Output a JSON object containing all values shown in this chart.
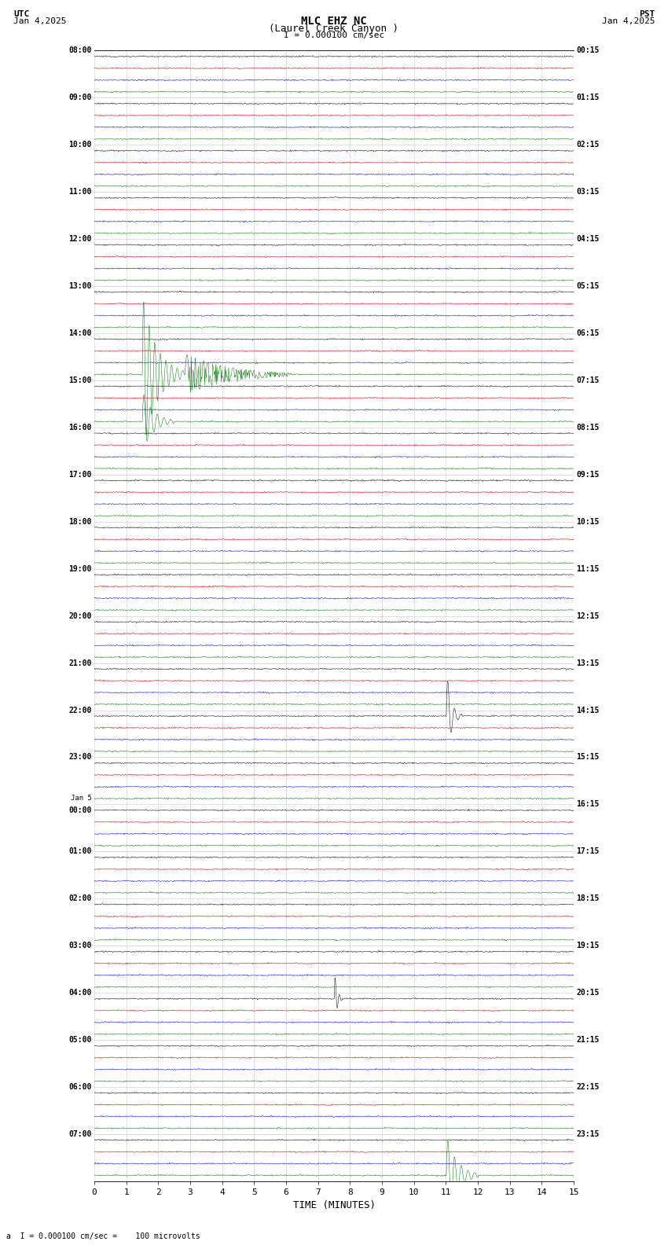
{
  "title_line1": "MLC EHZ NC",
  "title_line2": "(Laurel Creek Canyon )",
  "scale_label": "I = 0.000100 cm/sec",
  "bottom_label": "a  I = 0.000100 cm/sec =    100 microvolts",
  "utc_label": "UTC",
  "pst_label": "PST",
  "utc_date": "Jan 4,2025",
  "pst_date": "Jan 4,2025",
  "xlabel": "TIME (MINUTES)",
  "xmin": 0,
  "xmax": 15,
  "xticks": [
    0,
    1,
    2,
    3,
    4,
    5,
    6,
    7,
    8,
    9,
    10,
    11,
    12,
    13,
    14,
    15
  ],
  "bg_color": "#ffffff",
  "grid_color": "#aaaaaa",
  "trace_colors": [
    "#000000",
    "#cc0000",
    "#0000cc",
    "#007700"
  ],
  "left_times_utc": [
    "08:00",
    "09:00",
    "10:00",
    "11:00",
    "12:00",
    "13:00",
    "14:00",
    "15:00",
    "16:00",
    "17:00",
    "18:00",
    "19:00",
    "20:00",
    "21:00",
    "22:00",
    "23:00",
    "Jan 5\n00:00",
    "01:00",
    "02:00",
    "03:00",
    "04:00",
    "05:00",
    "06:00",
    "07:00"
  ],
  "right_times_pst": [
    "00:15",
    "01:15",
    "02:15",
    "03:15",
    "04:15",
    "05:15",
    "06:15",
    "07:15",
    "08:15",
    "09:15",
    "10:15",
    "11:15",
    "12:15",
    "13:15",
    "14:15",
    "15:15",
    "16:15",
    "17:15",
    "18:15",
    "19:15",
    "20:15",
    "21:15",
    "22:15",
    "23:15"
  ],
  "n_rows": 24,
  "traces_per_row": 4,
  "noise_scale": 0.06,
  "seed": 12345
}
